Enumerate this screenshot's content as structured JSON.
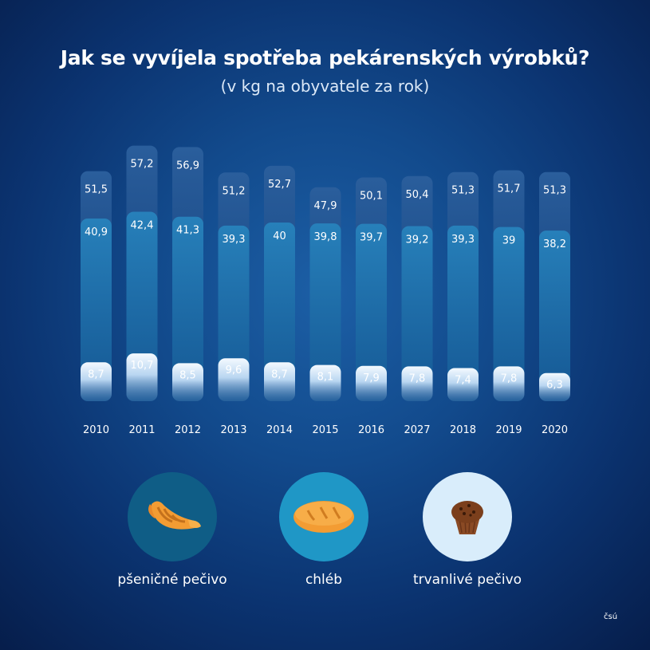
{
  "title": "Jak se vyvíjela spotřeba pekárenských výrobků?",
  "subtitle": "(v kg na obyvatele za rok)",
  "chart_data": {
    "type": "bar",
    "title": "Jak se vyvíjela spotřeba pekárenských výrobků?",
    "subtitle": "(v kg na obyvatele za rok)",
    "categories": [
      "2010",
      "2011",
      "2012",
      "2013",
      "2014",
      "2015",
      "2016",
      "2027",
      "2018",
      "2019",
      "2020"
    ],
    "series": [
      {
        "name": "pšeničné pečivo",
        "values": [
          51.5,
          57.2,
          56.9,
          51.2,
          52.7,
          47.9,
          50.1,
          50.4,
          51.3,
          51.7,
          51.3
        ],
        "color": "#1f5593"
      },
      {
        "name": "chléb",
        "values": [
          40.9,
          42.4,
          41.3,
          39.3,
          40,
          39.8,
          39.7,
          39.2,
          39.3,
          39,
          38.2
        ],
        "color": "#1d7bb3"
      },
      {
        "name": "trvanlivé pečivo",
        "values": [
          8.7,
          10.7,
          8.5,
          9.6,
          8.7,
          8.1,
          7.9,
          7.8,
          7.4,
          7.8,
          6.3
        ],
        "color": "#cfe3f5"
      }
    ],
    "value_labels": [
      [
        "51,5",
        "57,2",
        "56,9",
        "51,2",
        "52,7",
        "47,9",
        "50,1",
        "50,4",
        "51,3",
        "51,7",
        "51,3"
      ],
      [
        "40,9",
        "42,4",
        "41,3",
        "39,3",
        "40",
        "39,8",
        "39,7",
        "39,2",
        "39,3",
        "39",
        "38,2"
      ],
      [
        "8,7",
        "10,7",
        "8,5",
        "9,6",
        "8,7",
        "8,1",
        "7,9",
        "7,8",
        "7,4",
        "7,8",
        "6,3"
      ]
    ],
    "bar_style": "overlapping",
    "grid": false,
    "legend_position": "bottom"
  },
  "legend": [
    {
      "label": "pšeničné pečivo",
      "icon": "croissant-icon",
      "color": "#0f5d86"
    },
    {
      "label": "chléb",
      "icon": "bread-icon",
      "color": "#1f97c6"
    },
    {
      "label": "trvanlivé pečivo",
      "icon": "muffin-icon",
      "color": "#d9edfb"
    }
  ],
  "source": "čsú"
}
